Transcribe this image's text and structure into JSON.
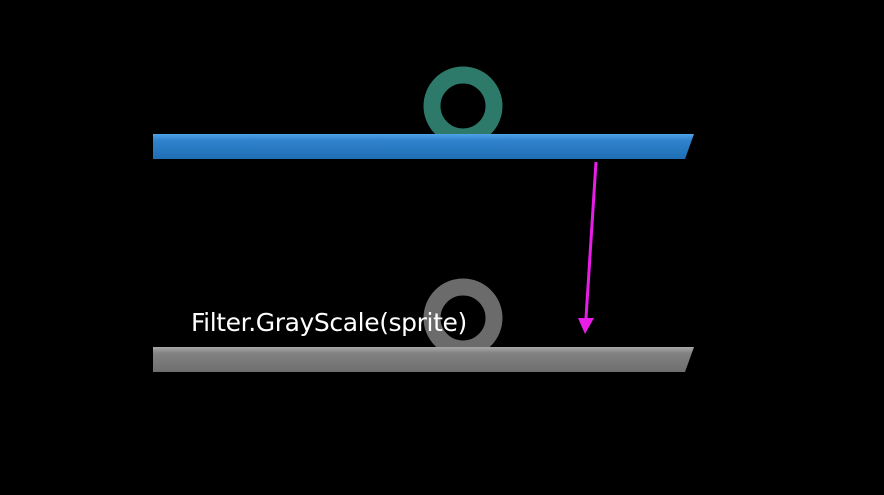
{
  "scene": {
    "caption": "Filter.GrayScale(sprite)",
    "colors": {
      "background": "#000000",
      "original_bar": "#2e7dc4",
      "original_ring": "#2e7a6a",
      "grayscale_bar": "#7a7a7a",
      "grayscale_ring": "#6b6b6b",
      "arrow": "#e81ee8",
      "caption_text": "#ffffff"
    },
    "sprites": [
      {
        "name": "original-sprite",
        "style": "color"
      },
      {
        "name": "grayscale-sprite",
        "style": "grayscale"
      }
    ]
  }
}
